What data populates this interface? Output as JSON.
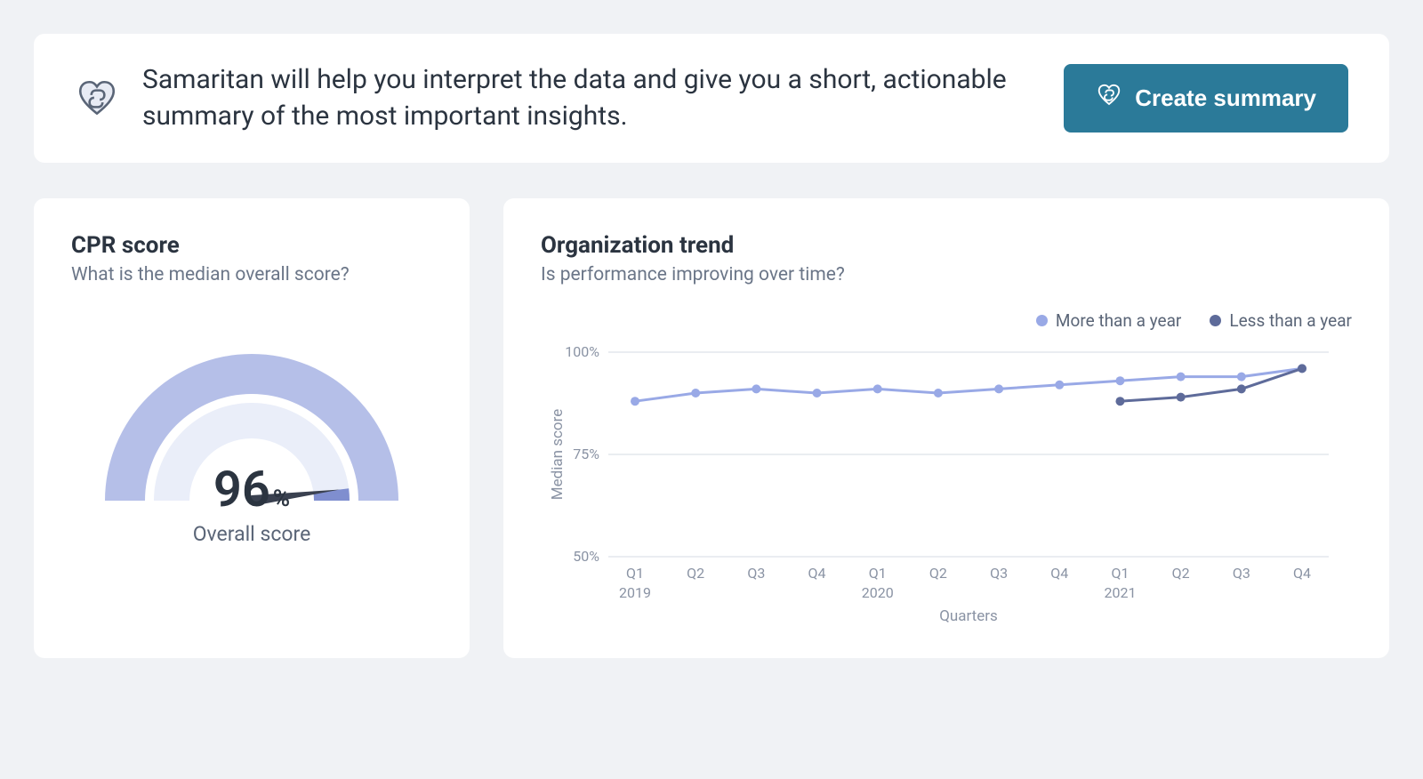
{
  "banner": {
    "text": "Samaritan will help you interpret the data and give you a short, actionable summary of the most important insights.",
    "button_label": "Create summary",
    "icon_color": "#5a6577",
    "button_bg": "#2b7a99",
    "button_fg": "#ffffff"
  },
  "cpr_card": {
    "title": "CPR score",
    "subtitle": "What is the median overall score?",
    "gauge": {
      "type": "gauge",
      "value": 96,
      "display_value": "96",
      "pct_symbol": "%",
      "label": "Overall score",
      "min": 0,
      "max": 100,
      "ring_outer_color": "#b5bfe8",
      "ring_inner_bg": "#eaeef9",
      "ring_fill_color": "#7f8ecf",
      "needle_color": "#3a4150",
      "outer_radius": 165,
      "outer_inner": 120,
      "inner_radius": 110,
      "inner_inner": 70
    }
  },
  "trend_card": {
    "title": "Organization trend",
    "subtitle": "Is performance improving over time?",
    "chart": {
      "type": "line",
      "xlabel": "Quarters",
      "ylabel": "Median score",
      "ylim": [
        50,
        100
      ],
      "yticks": [
        50,
        75,
        100
      ],
      "ytick_labels": [
        "50%",
        "75%",
        "100%"
      ],
      "quarters": [
        "Q1",
        "Q2",
        "Q3",
        "Q4",
        "Q1",
        "Q2",
        "Q3",
        "Q4",
        "Q1",
        "Q2",
        "Q3",
        "Q4"
      ],
      "years": {
        "2019": 0,
        "2020": 4,
        "2021": 8
      },
      "grid_color": "#d6dbe3",
      "marker_radius": 5,
      "line_width": 3,
      "series": [
        {
          "name": "More than a year",
          "color": "#99a9e6",
          "start_index": 0,
          "values": [
            88,
            90,
            91,
            90,
            91,
            90,
            91,
            92,
            93,
            94,
            94,
            96
          ]
        },
        {
          "name": "Less than a year",
          "color": "#5e6b9a",
          "start_index": 8,
          "values": [
            88,
            89,
            91,
            96
          ]
        }
      ]
    }
  },
  "colors": {
    "page_bg": "#f0f2f5",
    "card_bg": "#ffffff",
    "text_primary": "#2b3440",
    "text_secondary": "#6b7688"
  }
}
